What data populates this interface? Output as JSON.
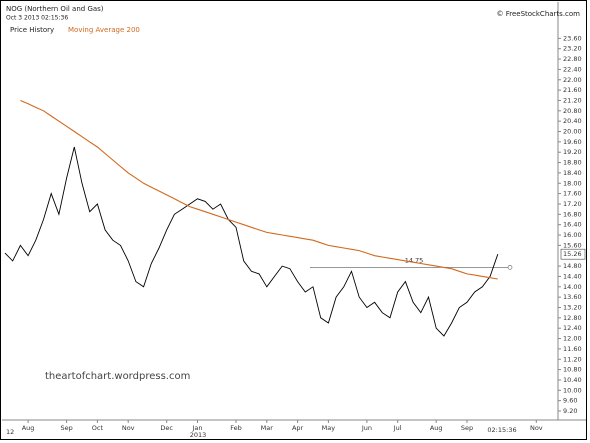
{
  "chart_data": {
    "type": "line",
    "title": "NOG (Northern Oil and Gas)",
    "subtitle": "Oct 3 2013 02:15:36",
    "source": "© FreeStockCharts.com",
    "watermark": "theartofchart.wordpress.com",
    "year_start_label": "12",
    "year_label": "2013",
    "time_label": "02:15:36",
    "categories": [
      null,
      null,
      null,
      "Aug",
      null,
      null,
      null,
      null,
      "Sep",
      null,
      null,
      null,
      "Oct",
      null,
      null,
      null,
      "Nov",
      null,
      null,
      null,
      null,
      "Dec",
      null,
      null,
      null,
      "Jan",
      null,
      null,
      null,
      null,
      "Feb",
      null,
      null,
      null,
      "Mar",
      null,
      null,
      null,
      "Apr",
      null,
      null,
      null,
      "May",
      null,
      null,
      null,
      null,
      "Jun",
      null,
      null,
      null,
      "Jul",
      null,
      null,
      null,
      null,
      "Aug",
      null,
      null,
      null,
      "Sep",
      null,
      null,
      null,
      null,
      null,
      null,
      null,
      null,
      "Nov"
    ],
    "series": [
      {
        "name": "Price History",
        "color": "#000000",
        "values": [
          15.3,
          15.0,
          15.6,
          15.2,
          15.8,
          16.6,
          17.6,
          16.8,
          18.2,
          19.4,
          18.0,
          16.9,
          17.2,
          16.2,
          15.8,
          15.6,
          15.0,
          14.2,
          14.0,
          14.9,
          15.5,
          16.2,
          16.8,
          17.0,
          17.2,
          17.4,
          17.3,
          17.0,
          17.2,
          16.6,
          16.3,
          15.0,
          14.6,
          14.5,
          14.0,
          14.4,
          14.8,
          14.7,
          14.2,
          13.8,
          14.0,
          12.8,
          12.6,
          13.6,
          14.0,
          14.6,
          13.6,
          13.2,
          13.4,
          13.0,
          12.8,
          13.8,
          14.2,
          13.4,
          13.0,
          13.6,
          12.4,
          12.1,
          12.6,
          13.2,
          13.4,
          13.8,
          14.0,
          14.4,
          15.26,
          null,
          null,
          null,
          null,
          null
        ]
      },
      {
        "name": "Moving Average 200",
        "color": "#d2691e",
        "values": [
          null,
          null,
          21.2,
          21.07,
          20.93,
          20.8,
          20.6,
          20.4,
          20.2,
          20.0,
          19.8,
          19.6,
          19.4,
          19.15,
          18.9,
          18.65,
          18.4,
          18.2,
          18.0,
          17.85,
          17.7,
          17.55,
          17.4,
          17.25,
          17.1,
          17.0,
          16.9,
          16.8,
          16.7,
          16.6,
          16.5,
          16.4,
          16.3,
          16.2,
          16.1,
          16.05,
          16.0,
          15.95,
          15.9,
          15.85,
          15.8,
          15.7,
          15.6,
          15.55,
          15.5,
          15.45,
          15.4,
          15.3,
          15.2,
          15.15,
          15.1,
          15.05,
          15.0,
          14.95,
          14.9,
          14.85,
          14.8,
          14.75,
          14.7,
          14.6,
          14.5,
          14.45,
          14.4,
          14.35,
          14.3,
          null,
          null,
          null,
          null,
          null
        ]
      }
    ],
    "hline": 14.75,
    "ylim": [
      8.93,
      24.0
    ],
    "yticks": [
      {
        "value": 23.6,
        "label": "23.60"
      },
      {
        "value": 23.2,
        "label": "23.20"
      },
      {
        "value": 22.8,
        "label": "22.80"
      },
      {
        "value": 22.4,
        "label": "22.40"
      },
      {
        "value": 22.0,
        "label": "22.00"
      },
      {
        "value": 21.6,
        "label": "21.60"
      },
      {
        "value": 21.2,
        "label": "21.20"
      },
      {
        "value": 20.8,
        "label": "20.80"
      },
      {
        "value": 20.4,
        "label": "20.40"
      },
      {
        "value": 20.0,
        "label": "20.00"
      },
      {
        "value": 19.6,
        "label": "19.60"
      },
      {
        "value": 19.2,
        "label": "19.20"
      },
      {
        "value": 18.8,
        "label": "18.80"
      },
      {
        "value": 18.4,
        "label": "18.40"
      },
      {
        "value": 18.0,
        "label": "18.00"
      },
      {
        "value": 17.6,
        "label": "17.60"
      },
      {
        "value": 17.2,
        "label": "17.20"
      },
      {
        "value": 16.8,
        "label": "16.80"
      },
      {
        "value": 16.4,
        "label": "16.40"
      },
      {
        "value": 16.0,
        "label": "16.00"
      },
      {
        "value": 15.6,
        "label": "15.60"
      },
      {
        "value": 14.8,
        "label": "14.80"
      },
      {
        "value": 14.4,
        "label": "14.40"
      },
      {
        "value": 14.0,
        "label": "14.00"
      },
      {
        "value": 13.6,
        "label": "13.60"
      },
      {
        "value": 13.2,
        "label": "13.20"
      },
      {
        "value": 12.8,
        "label": "12.80"
      },
      {
        "value": 12.4,
        "label": "12.40"
      },
      {
        "value": 12.0,
        "label": "12.00"
      },
      {
        "value": 11.6,
        "label": "11.60"
      },
      {
        "value": 11.2,
        "label": "11.20"
      },
      {
        "value": 10.8,
        "label": "10.80"
      },
      {
        "value": 10.4,
        "label": "10.40"
      },
      {
        "value": 10.0,
        "label": "10.00"
      },
      {
        "value": 9.6,
        "label": "9.60"
      },
      {
        "value": 9.2,
        "label": "9.20"
      }
    ],
    "grid": false
  }
}
